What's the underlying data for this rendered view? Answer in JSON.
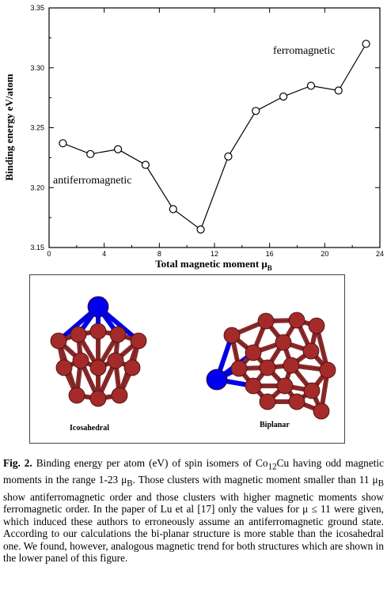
{
  "chart_data": {
    "type": "line",
    "xlabel": "Total magnetic moment",
    "xlabel_symbol": "μ",
    "xlabel_sub": "B",
    "ylabel": "Binding energy  eV/atom",
    "xlim": [
      0,
      24
    ],
    "ylim": [
      3.15,
      3.35
    ],
    "xticks": [
      0,
      4,
      8,
      12,
      16,
      20,
      24
    ],
    "yticks": [
      3.15,
      3.2,
      3.25,
      3.3,
      3.35
    ],
    "xtick_labels": [
      "0",
      "4",
      "8",
      "12",
      "16",
      "20",
      "24"
    ],
    "ytick_labels": [
      "3.15",
      "3.20",
      "3.25",
      "3.30",
      "3.35"
    ],
    "series": [
      {
        "x": [
          1,
          3,
          5,
          7,
          9,
          11,
          13,
          15,
          17,
          19,
          21,
          23
        ],
        "y": [
          3.237,
          3.228,
          3.232,
          3.219,
          3.182,
          3.165,
          3.226,
          3.264,
          3.276,
          3.285,
          3.281,
          3.32
        ]
      }
    ],
    "annotations": [
      "ferromagnetic",
      "antiferromagnetic"
    ],
    "marker": "open-circle",
    "color": "#000000",
    "grid": false
  },
  "structures": {
    "left_label": "Icosahedral",
    "right_label": "Biplanar",
    "atom_color": "#a52a2a",
    "bond_color": "#8b2a2a",
    "cu_color": "#0000ee"
  },
  "caption": {
    "fig_label": "Fig. 2.",
    "text_1": " Binding energy per atom (eV) of spin isomers of Co",
    "sub_1": "12",
    "text_2": "Cu having odd magnetic moments in the range 1-23 μ",
    "sub_2": "B",
    "text_3": ". Those clusters with magnetic moment smaller than 11 μ",
    "sub_3": "B",
    "text_4": " show antiferromagnetic order and those clusters with higher magnetic moments show ferromagnetic order. In the paper of Lu et al [17] only the values for μ ≤ 11 were given, which induced these authors to erroneously assume an antiferromagnetic ground state. According to our calculations the bi-planar structure is more stable than the icosahedral one. We found, however, analogous magnetic trend for both structures which are shown in the lower panel of this figure."
  }
}
